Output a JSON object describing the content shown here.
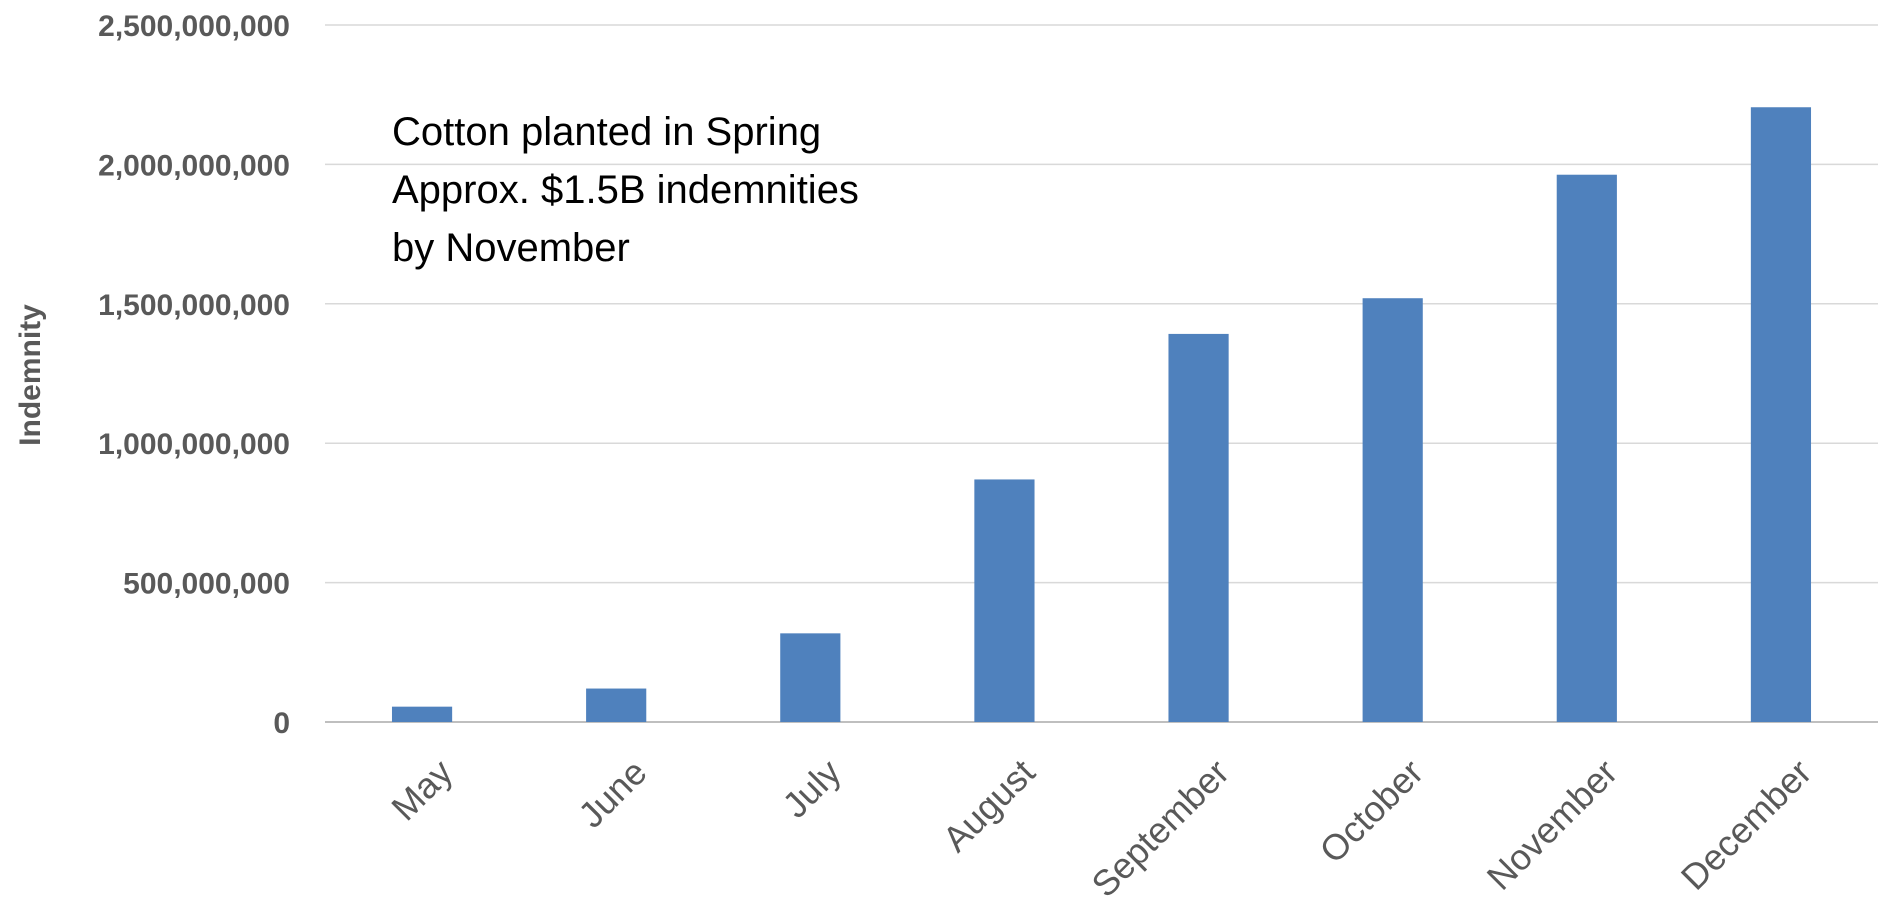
{
  "chart_data": {
    "type": "bar",
    "categories": [
      "May",
      "June",
      "July",
      "August",
      "September",
      "October",
      "November",
      "December"
    ],
    "values": [
      55000000,
      120000000,
      318000000,
      870000000,
      1392000000,
      1520000000,
      1963000000,
      2205000000
    ],
    "xlabel": "",
    "ylabel": "Indemnity",
    "ylim": [
      0,
      2500000000
    ],
    "yticks": [
      0,
      500000000,
      1000000000,
      1500000000,
      2000000000,
      2500000000
    ],
    "ytick_labels": [
      "0",
      "500,000,000",
      "1,000,000,000",
      "1,500,000,000",
      "2,000,000,000",
      "2,500,000,000"
    ],
    "annotation": [
      "Cotton planted in Spring",
      "Approx. $1.5B indemnities",
      "by November"
    ],
    "grid": true,
    "legend": "none",
    "bar_color": "#4f81bd"
  }
}
